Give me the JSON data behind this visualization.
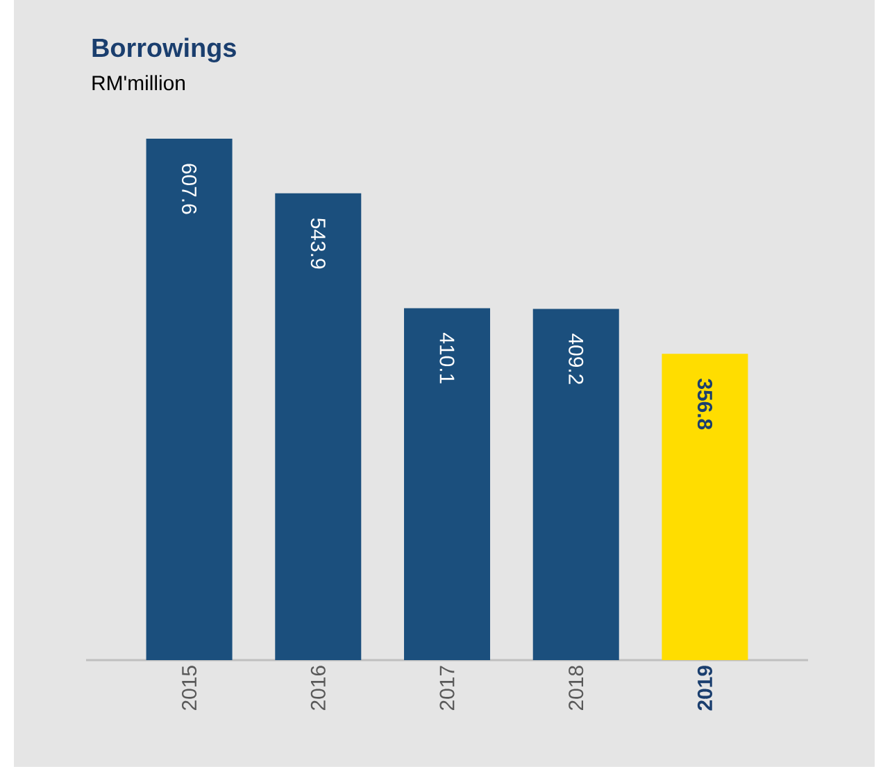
{
  "chart_data": {
    "type": "bar",
    "title": "Borrowings",
    "subtitle": "RM'million",
    "categories": [
      "2015",
      "2016",
      "2017",
      "2018",
      "2019"
    ],
    "values": [
      607.6,
      543.9,
      410.1,
      409.2,
      356.8
    ],
    "colors": [
      "#1b4f7d",
      "#1b4f7d",
      "#1b4f7d",
      "#1b4f7d",
      "#ffdd00"
    ],
    "data_labels": true,
    "tick_labels": "x",
    "grid": false
  }
}
